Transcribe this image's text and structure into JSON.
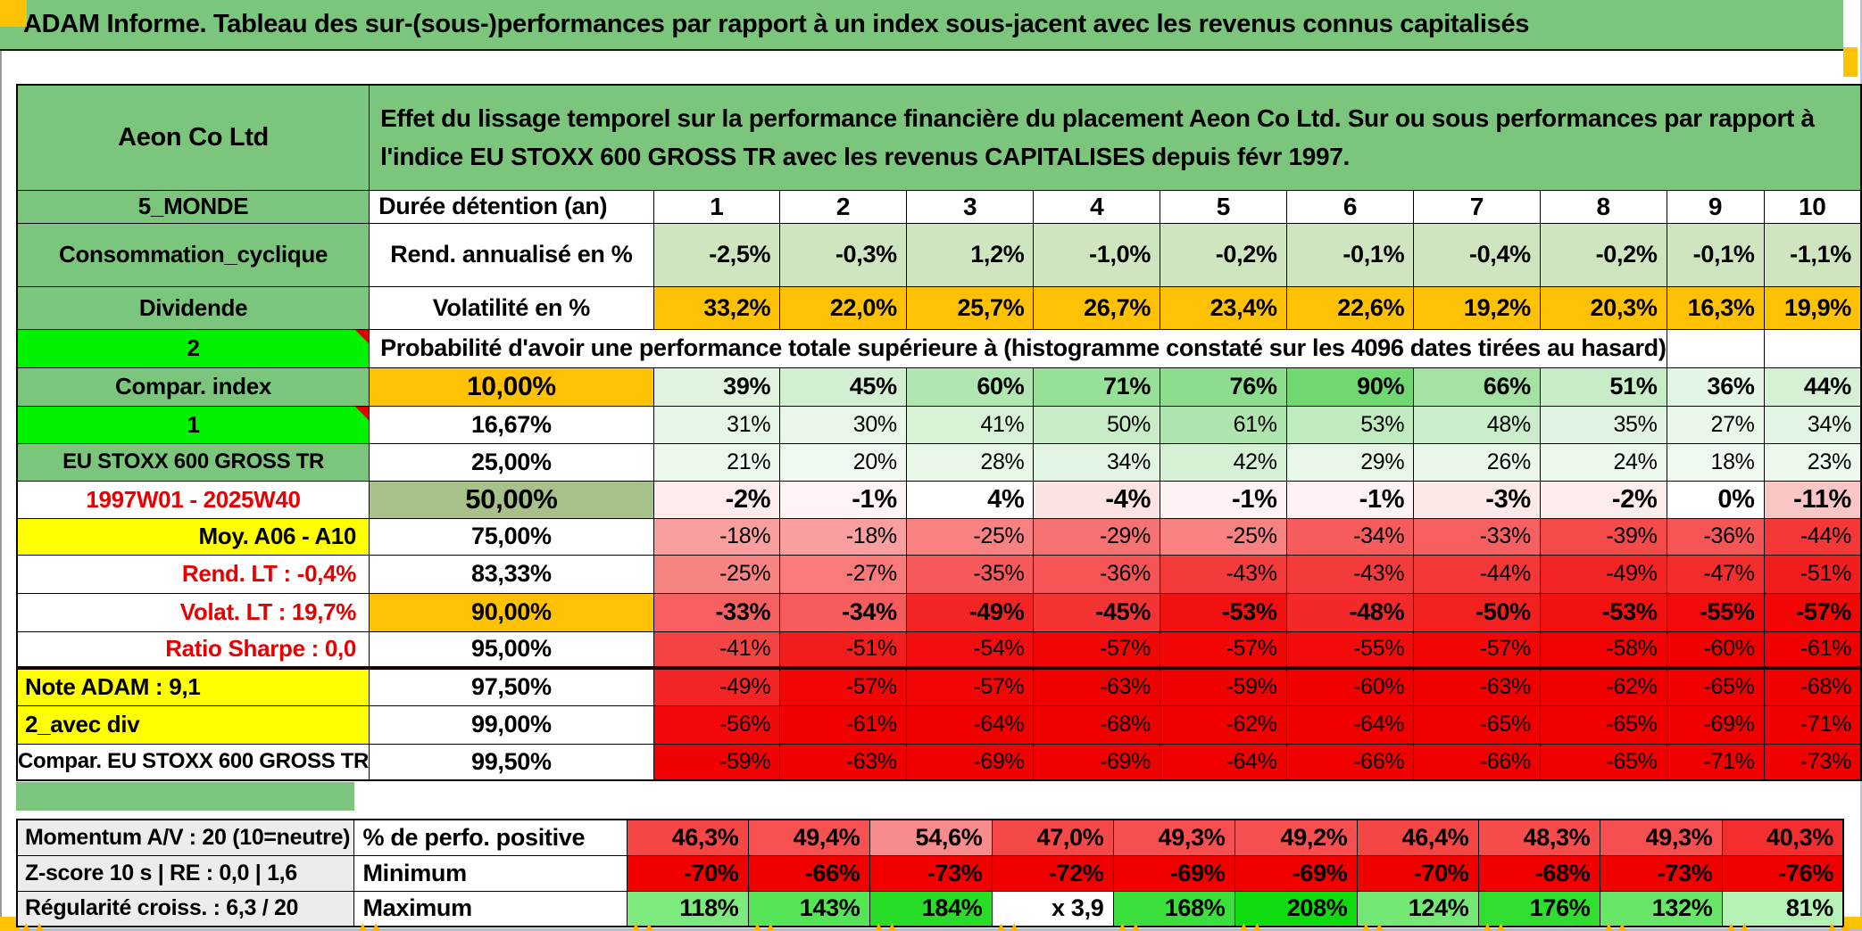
{
  "title": "ADAM Informe. Tableau des sur-(sous-)performances par rapport à un index sous-jacent avec les revenus connus capitalisés",
  "header": {
    "company": "Aeon Co Ltd",
    "description": "Effet du lissage temporel sur la performance financière du placement Aeon Co Ltd. Sur ou sous performances par rapport à l'indice EU STOXX 600 GROSS TR avec les revenus CAPITALISES depuis févr 1997."
  },
  "palette": {
    "label_green": "#7cc57c",
    "bright_green": "#00f200",
    "orange": "#ffc103",
    "yellow": "#ffff00",
    "olive_green": "#a8c08a",
    "gray_label": "#ececec",
    "deep_red": "#f10000",
    "light_green_data": "#cfe5c0",
    "marker_orange": "#ffb400",
    "comment_red": "#e00000",
    "label_red_text": "#e80000"
  },
  "columns": [
    "1",
    "2",
    "3",
    "4",
    "5",
    "6",
    "7",
    "8",
    "9",
    "10"
  ],
  "rows": {
    "duree": {
      "label": "5_MONDE",
      "labelBg": "#7cc57c",
      "col2": "Durée détention (an)",
      "values": [
        "1",
        "2",
        "3",
        "4",
        "5",
        "6",
        "7",
        "8",
        "9",
        "10"
      ],
      "colors": [
        "#ffffff",
        "#ffffff",
        "#ffffff",
        "#ffffff",
        "#ffffff",
        "#ffffff",
        "#ffffff",
        "#ffffff",
        "#ffffff",
        "#ffffff"
      ]
    },
    "rend": {
      "label": "Consommation_cyclique",
      "labelBg": "#7cc57c",
      "col2": "Rend. annualisé en %",
      "values": [
        "-2,5%",
        "-0,3%",
        "1,2%",
        "-1,0%",
        "-0,2%",
        "-0,1%",
        "-0,4%",
        "-0,2%",
        "-0,1%",
        "-1,1%"
      ],
      "colors": [
        "#cfe5c0",
        "#cfe5c0",
        "#cfe5c0",
        "#cfe5c0",
        "#cfe5c0",
        "#cfe5c0",
        "#cfe5c0",
        "#cfe5c0",
        "#cfe5c0",
        "#cfe5c0"
      ]
    },
    "volat": {
      "label": "Dividende",
      "labelBg": "#7cc57c",
      "col2": "Volatilité en %",
      "values": [
        "33,2%",
        "22,0%",
        "25,7%",
        "26,7%",
        "23,4%",
        "22,6%",
        "19,2%",
        "20,3%",
        "16,3%",
        "19,9%"
      ],
      "colors": [
        "#ffc103",
        "#ffc103",
        "#ffc103",
        "#ffc103",
        "#ffc103",
        "#ffc103",
        "#ffc103",
        "#ffc103",
        "#ffc103",
        "#ffc103"
      ]
    },
    "prob": {
      "label": "2",
      "labelBg": "#00f200",
      "hasComment": true,
      "span_text": "Probabilité d'avoir une performance totale supérieure à (histogramme constaté sur les 4096 dates tirées au hasard)"
    },
    "p10": {
      "label": "Compar. index",
      "labelBg": "#7cc57c",
      "col2": "10,00%",
      "col2Bg": "#ffc103",
      "values": [
        "39%",
        "45%",
        "60%",
        "71%",
        "76%",
        "90%",
        "66%",
        "51%",
        "36%",
        "44%"
      ],
      "colors": [
        "#dff3df",
        "#d2efd2",
        "#b0e6b0",
        "#97e097",
        "#8edd8e",
        "#71d771",
        "#a3e2a3",
        "#c7ecc7",
        "#e3f5e3",
        "#d6f0d6"
      ]
    },
    "p1667": {
      "label": "1",
      "labelBg": "#00f200",
      "hasComment": true,
      "col2": "16,67%",
      "col2Bg": "#ffffff",
      "values": [
        "31%",
        "30%",
        "41%",
        "50%",
        "61%",
        "53%",
        "48%",
        "35%",
        "27%",
        "34%"
      ],
      "colors": [
        "#e6f6e6",
        "#e7f6e7",
        "#d7f1d7",
        "#c8ecc8",
        "#aee4ae",
        "#c0eac0",
        "#cbedcb",
        "#e1f4e1",
        "#eaf8ea",
        "#e2f5e2"
      ]
    },
    "p25": {
      "label": "EU STOXX 600 GROSS TR",
      "labelBg": "#7cc57c",
      "col2": "25,00%",
      "col2Bg": "#ffffff",
      "values": [
        "21%",
        "20%",
        "28%",
        "34%",
        "42%",
        "29%",
        "26%",
        "24%",
        "18%",
        "23%"
      ],
      "colors": [
        "#eef9ee",
        "#eff9ef",
        "#e8f7e8",
        "#e2f5e2",
        "#d6f0d6",
        "#e7f6e7",
        "#eaf8ea",
        "#ecf8ec",
        "#f1faf1",
        "#eef9ee"
      ]
    },
    "p50": {
      "label": "1997W01 - 2025W40",
      "labelBg": "#ffffff",
      "labelColor": "#e80000",
      "col2": "50,00%",
      "col2Bg": "#a8c08a",
      "values": [
        "-2%",
        "-1%",
        "4%",
        "-4%",
        "-1%",
        "-1%",
        "-3%",
        "-2%",
        "0%",
        "-11%"
      ],
      "colors": [
        "#fdecec",
        "#fef4f4",
        "#ffffff",
        "#fce3e3",
        "#fef2f2",
        "#fef2f2",
        "#fde8e8",
        "#fdecec",
        "#ffffff",
        "#f9c6c6"
      ]
    },
    "p75": {
      "label": "Moy. A06 - A10",
      "labelBg": "#ffff00",
      "col2": "75,00%",
      "col2Bg": "#ffffff",
      "values": [
        "-18%",
        "-18%",
        "-25%",
        "-29%",
        "-25%",
        "-34%",
        "-33%",
        "-39%",
        "-36%",
        "-44%"
      ],
      "colors": [
        "#fa9f9f",
        "#fa9f9f",
        "#f88282",
        "#f77272",
        "#f88282",
        "#f65c5c",
        "#f66060",
        "#f54a4a",
        "#f55555",
        "#f43737"
      ]
    },
    "p8333": {
      "label": "Rend. LT :  -0,4%",
      "labelBg": "#ffffff",
      "labelColor": "#e80000",
      "col2": "83,33%",
      "col2Bg": "#ffffff",
      "values": [
        "-25%",
        "-27%",
        "-35%",
        "-36%",
        "-43%",
        "-43%",
        "-44%",
        "-49%",
        "-47%",
        "-51%"
      ],
      "colors": [
        "#f88383",
        "#f87a7a",
        "#f65959",
        "#f65555",
        "#f43b3b",
        "#f43b3b",
        "#f43737",
        "#f32424",
        "#f32c2c",
        "#f21d1d"
      ]
    },
    "p90": {
      "label": "Volat. LT :  19,7%",
      "labelBg": "#ffffff",
      "labelColor": "#e80000",
      "col2": "90,00%",
      "col2Bg": "#ffc103",
      "values": [
        "-33%",
        "-34%",
        "-49%",
        "-45%",
        "-53%",
        "-48%",
        "-50%",
        "-53%",
        "-55%",
        "-57%"
      ],
      "colors": [
        "#f66060",
        "#f65c5c",
        "#f32424",
        "#f43333",
        "#f21111",
        "#f32828",
        "#f32020",
        "#f21111",
        "#f20b0b",
        "#f20606"
      ]
    },
    "p95": {
      "label": "Ratio Sharpe :  0,0",
      "labelBg": "#ffffff",
      "labelColor": "#e80000",
      "col2": "95,00%",
      "col2Bg": "#ffffff",
      "values": [
        "-41%",
        "-51%",
        "-54%",
        "-57%",
        "-57%",
        "-55%",
        "-57%",
        "-58%",
        "-60%",
        "-61%"
      ],
      "colors": [
        "#f54242",
        "#f21d1d",
        "#f20e0e",
        "#f20606",
        "#f20606",
        "#f20b0b",
        "#f20606",
        "#f10303",
        "#f10000",
        "#f10000"
      ]
    },
    "p975": {
      "label": "Note ADAM : 9,1",
      "labelBg": "#ffff00",
      "col2": "97,50%",
      "col2Bg": "#ffffff",
      "values": [
        "-49%",
        "-57%",
        "-57%",
        "-63%",
        "-59%",
        "-60%",
        "-63%",
        "-62%",
        "-65%",
        "-68%"
      ],
      "colors": [
        "#f32424",
        "#f20606",
        "#f20606",
        "#f10000",
        "#f10202",
        "#f10000",
        "#f10000",
        "#f10000",
        "#f10000",
        "#f10000"
      ]
    },
    "p99": {
      "label": "2_avec div",
      "labelBg": "#ffff00",
      "col2": "99,00%",
      "col2Bg": "#ffffff",
      "values": [
        "-56%",
        "-61%",
        "-64%",
        "-68%",
        "-62%",
        "-64%",
        "-65%",
        "-65%",
        "-69%",
        "-71%"
      ],
      "colors": [
        "#f20909",
        "#f10000",
        "#f10000",
        "#f10000",
        "#f10000",
        "#f10000",
        "#f10000",
        "#f10000",
        "#f10000",
        "#f10000"
      ]
    },
    "p995": {
      "label": "Compar. EU STOXX 600 GROSS TR",
      "labelBg": "#ffffff",
      "col2": "99,50%",
      "col2Bg": "#ffffff",
      "values": [
        "-59%",
        "-63%",
        "-69%",
        "-69%",
        "-64%",
        "-66%",
        "-66%",
        "-65%",
        "-71%",
        "-73%"
      ],
      "colors": [
        "#f10202",
        "#f10000",
        "#f10000",
        "#f10000",
        "#f10000",
        "#f10000",
        "#f10000",
        "#f10000",
        "#f10000",
        "#f10000"
      ]
    },
    "perfpos": {
      "label": "Momentum A/V : 20 (10=neutre)",
      "labelBg": "#ececec",
      "col2": "% de perfo. positive",
      "col2Bg": "#ffffff",
      "values": [
        "46,3%",
        "49,4%",
        "54,6%",
        "47,0%",
        "49,3%",
        "49,2%",
        "46,4%",
        "48,3%",
        "49,3%",
        "40,3%"
      ],
      "colors": [
        "#f54646",
        "#f65050",
        "#f88b8b",
        "#f54848",
        "#f64f4f",
        "#f64f4f",
        "#f54646",
        "#f64c4c",
        "#f64f4f",
        "#f42e2e"
      ]
    },
    "min": {
      "label": "Z-score 10 s | RE : 0,0 | 1,6",
      "labelBg": "#ececec",
      "col2": "Minimum",
      "col2Bg": "#ffffff",
      "values": [
        "-70%",
        "-66%",
        "-73%",
        "-72%",
        "-69%",
        "-69%",
        "-70%",
        "-68%",
        "-73%",
        "-76%"
      ],
      "colors": [
        "#f10000",
        "#f10000",
        "#f10000",
        "#f10000",
        "#f10000",
        "#f10000",
        "#f10000",
        "#f10000",
        "#f10000",
        "#f10000"
      ]
    },
    "max": {
      "label": "Régularité croiss. : 6,3 / 20",
      "labelBg": "#ececec",
      "col2": "Maximum",
      "col2Bg": "#ffffff",
      "values": [
        "118%",
        "143%",
        "184%",
        "x 3,9",
        "168%",
        "208%",
        "124%",
        "176%",
        "132%",
        "81%"
      ],
      "colors": [
        "#7cea7c",
        "#55e455",
        "#28dc28",
        "#ffffff",
        "#3ce03c",
        "#0edc0e",
        "#74e874",
        "#30de30",
        "#67e667",
        "#b5f2b5"
      ]
    }
  }
}
